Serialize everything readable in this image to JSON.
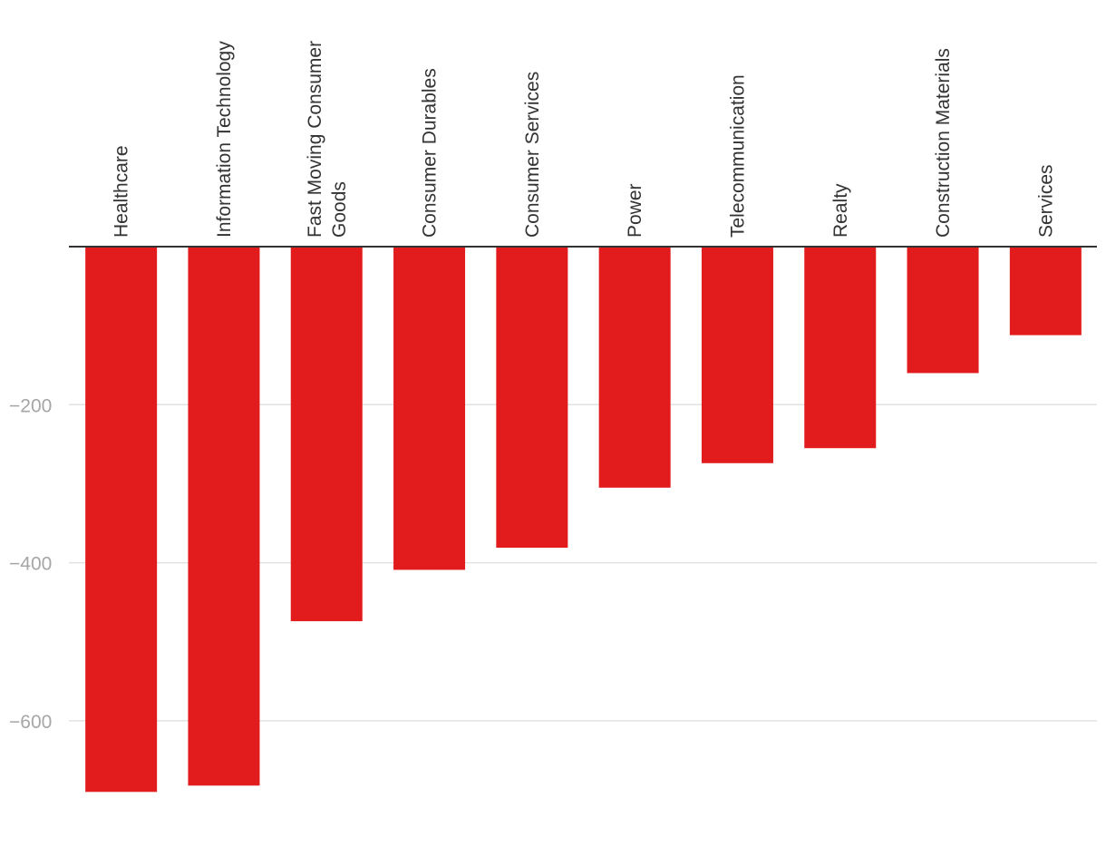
{
  "chart_data": {
    "type": "bar",
    "title": "",
    "xlabel": "",
    "ylabel": "",
    "categories": [
      [
        "Healthcare"
      ],
      [
        "Information Technology"
      ],
      [
        "Fast Moving Consumer",
        "Goods"
      ],
      [
        "Consumer Durables"
      ],
      [
        "Consumer Services"
      ],
      [
        "Power"
      ],
      [
        "Telecommunication"
      ],
      [
        "Realty"
      ],
      [
        "Construction Materials"
      ],
      [
        "Services"
      ]
    ],
    "values": [
      -690,
      -682,
      -474,
      -409,
      -381,
      -305,
      -274,
      -255,
      -160,
      -112
    ],
    "ylim": [
      -700,
      0
    ],
    "yticks": [
      {
        "value": -200,
        "label": "−200"
      },
      {
        "value": -400,
        "label": "−400"
      },
      {
        "value": -600,
        "label": "−600"
      }
    ],
    "bar_color": "#e21b1d",
    "gridlines": true,
    "category_label_position": "top, rotated vertical",
    "legend": "none"
  }
}
